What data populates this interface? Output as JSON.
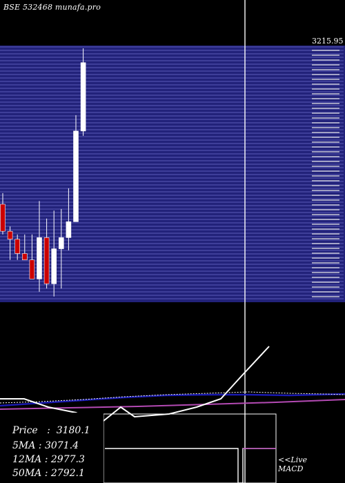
{
  "header": {
    "watermark": "BSE 532468  munafa.pro"
  },
  "stats": {
    "price_label": "Price",
    "price_value": "3180.1",
    "ma5_label": "5MA",
    "ma5_value": "3071.4",
    "ma12_label": "12MA",
    "ma12_value": "2977.3",
    "ma50_label": "50MA",
    "ma50_value": "2792.1"
  },
  "macd": {
    "live_label": "<<Live",
    "title": "MACD"
  },
  "colors": {
    "background": "#000000",
    "up_candle": "#ffffff",
    "down_candle": "#cc0000",
    "band": "#22227a",
    "band_line": "#5a5ab8",
    "ma_blue": "#1a1ab0",
    "ma_magenta": "#b44ab4"
  },
  "chart_data": {
    "type": "candlestick",
    "yaxis": {
      "top_label": "3215.95"
    },
    "candles": [
      {
        "o": 2735,
        "h": 2770,
        "l": 2640,
        "c": 2650,
        "dir": "down"
      },
      {
        "o": 2650,
        "h": 2665,
        "l": 2560,
        "c": 2625,
        "dir": "down"
      },
      {
        "o": 2625,
        "h": 2640,
        "l": 2560,
        "c": 2580,
        "dir": "down"
      },
      {
        "o": 2580,
        "h": 2640,
        "l": 2560,
        "c": 2560,
        "dir": "down"
      },
      {
        "o": 2560,
        "h": 2640,
        "l": 2500,
        "c": 2500,
        "dir": "down"
      },
      {
        "o": 2500,
        "h": 2745,
        "l": 2460,
        "c": 2630,
        "dir": "up"
      },
      {
        "o": 2630,
        "h": 2690,
        "l": 2470,
        "c": 2485,
        "dir": "down"
      },
      {
        "o": 2485,
        "h": 2715,
        "l": 2445,
        "c": 2595,
        "dir": "up"
      },
      {
        "o": 2595,
        "h": 2720,
        "l": 2470,
        "c": 2630,
        "dir": "up"
      },
      {
        "o": 2630,
        "h": 2785,
        "l": 2590,
        "c": 2680,
        "dir": "up"
      },
      {
        "o": 2680,
        "h": 3015,
        "l": 2680,
        "c": 2965,
        "dir": "up"
      },
      {
        "o": 2965,
        "h": 3225,
        "l": 2950,
        "c": 3180,
        "dir": "up"
      }
    ]
  }
}
